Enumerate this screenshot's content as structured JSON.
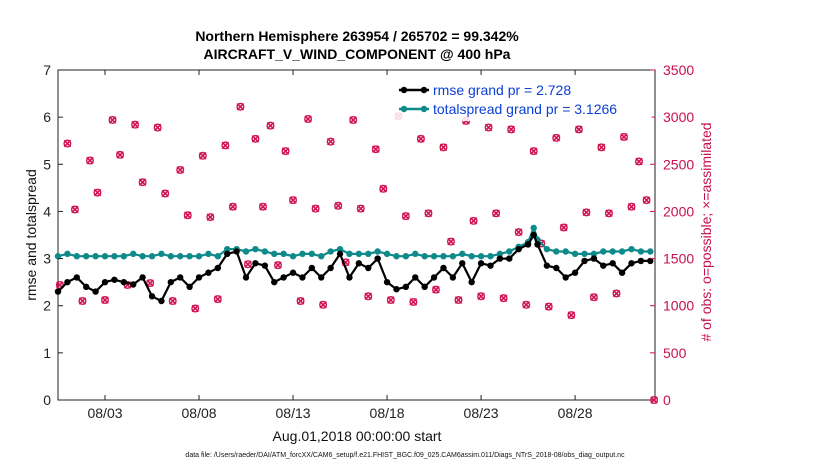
{
  "chart_data": {
    "type": "line",
    "title_line1": "Northern Hemisphere 263954 / 265702 = 99.342%",
    "title_line2": "AIRCRAFT_V_WIND_COMPONENT @ 400 hPa",
    "xlabel": "Aug.01,2018 00:00:00 start",
    "ylabel_left": "rmse and totalspread",
    "ylabel_right": "# of obs: o=possible; ×=assimilated",
    "footer": "data file: /Users/raeder/DAI/ATM_forcXX/CAM6_setup/f.e21.FHIST_BGC.f09_025.CAM6assim.011/Diags_NTrS_2018-08/obs_diag_output.nc",
    "xlim": [
      0.5,
      32.25
    ],
    "ylim_left": [
      0,
      7
    ],
    "ylim_right": [
      0,
      3500
    ],
    "x_ticks": [
      {
        "value": 3,
        "label": "08/03"
      },
      {
        "value": 8,
        "label": "08/08"
      },
      {
        "value": 13,
        "label": "08/13"
      },
      {
        "value": 18,
        "label": "08/18"
      },
      {
        "value": 23,
        "label": "08/23"
      },
      {
        "value": 28,
        "label": "08/28"
      }
    ],
    "y_ticks_left": [
      "0",
      "1",
      "2",
      "3",
      "4",
      "5",
      "6",
      "7"
    ],
    "y_ticks_right": [
      "0",
      "500",
      "1000",
      "1500",
      "2000",
      "2500",
      "3000",
      "3500"
    ],
    "legend": [
      {
        "label": "rmse grand pr = 2.728",
        "color": "#000000"
      },
      {
        "label": "totalspread grand pr = 3.1266",
        "color": "#0e8a8a"
      }
    ],
    "series_rmse": {
      "name": "rmse",
      "color": "#000000",
      "points": [
        [
          0.5,
          2.3
        ],
        [
          1.0,
          2.5
        ],
        [
          1.5,
          2.6
        ],
        [
          2.0,
          2.4
        ],
        [
          2.5,
          2.3
        ],
        [
          3.0,
          2.5
        ],
        [
          3.5,
          2.55
        ],
        [
          4.0,
          2.5
        ],
        [
          4.5,
          2.45
        ],
        [
          5.0,
          2.6
        ],
        [
          5.5,
          2.2
        ],
        [
          6.0,
          2.1
        ],
        [
          6.5,
          2.5
        ],
        [
          7.0,
          2.6
        ],
        [
          7.5,
          2.4
        ],
        [
          8.0,
          2.6
        ],
        [
          8.5,
          2.7
        ],
        [
          9.0,
          2.8
        ],
        [
          9.5,
          3.1
        ],
        [
          10.0,
          3.15
        ],
        [
          10.5,
          2.6
        ],
        [
          11.0,
          2.9
        ],
        [
          11.5,
          2.85
        ],
        [
          12.0,
          2.5
        ],
        [
          12.5,
          2.6
        ],
        [
          13.0,
          2.7
        ],
        [
          13.5,
          2.6
        ],
        [
          14.0,
          2.8
        ],
        [
          14.5,
          2.6
        ],
        [
          15.0,
          2.8
        ],
        [
          15.5,
          3.1
        ],
        [
          16.0,
          2.6
        ],
        [
          16.5,
          2.9
        ],
        [
          17.0,
          2.8
        ],
        [
          17.5,
          3.0
        ],
        [
          18.0,
          2.5
        ],
        [
          18.5,
          2.35
        ],
        [
          19.0,
          2.4
        ],
        [
          19.5,
          2.6
        ],
        [
          20.0,
          2.4
        ],
        [
          20.5,
          2.6
        ],
        [
          21.0,
          2.8
        ],
        [
          21.5,
          2.6
        ],
        [
          22.0,
          2.9
        ],
        [
          22.5,
          2.5
        ],
        [
          23.0,
          2.9
        ],
        [
          23.5,
          2.85
        ],
        [
          24.0,
          3.0
        ],
        [
          24.5,
          3.0
        ],
        [
          25.0,
          3.2
        ],
        [
          25.5,
          3.3
        ],
        [
          25.8,
          3.5
        ],
        [
          26.0,
          3.3
        ],
        [
          26.5,
          2.85
        ],
        [
          27.0,
          2.8
        ],
        [
          27.5,
          2.6
        ],
        [
          28.0,
          2.7
        ],
        [
          28.5,
          2.95
        ],
        [
          29.0,
          3.0
        ],
        [
          29.5,
          2.85
        ],
        [
          30.0,
          2.9
        ],
        [
          30.5,
          2.7
        ],
        [
          31.0,
          2.9
        ],
        [
          31.5,
          2.95
        ],
        [
          32.0,
          2.95
        ]
      ]
    },
    "series_spread": {
      "name": "totalspread",
      "color": "#0e8a8a",
      "points": [
        [
          0.5,
          3.05
        ],
        [
          1.0,
          3.1
        ],
        [
          1.5,
          3.05
        ],
        [
          2.0,
          3.05
        ],
        [
          2.5,
          3.05
        ],
        [
          3.0,
          3.05
        ],
        [
          3.5,
          3.05
        ],
        [
          4.0,
          3.05
        ],
        [
          4.5,
          3.1
        ],
        [
          5.0,
          3.05
        ],
        [
          5.5,
          3.05
        ],
        [
          6.0,
          3.1
        ],
        [
          6.5,
          3.05
        ],
        [
          7.0,
          3.05
        ],
        [
          7.5,
          3.05
        ],
        [
          8.0,
          3.05
        ],
        [
          8.5,
          3.1
        ],
        [
          9.0,
          3.05
        ],
        [
          9.5,
          3.2
        ],
        [
          10.0,
          3.2
        ],
        [
          10.5,
          3.15
        ],
        [
          11.0,
          3.2
        ],
        [
          11.5,
          3.15
        ],
        [
          12.0,
          3.1
        ],
        [
          12.5,
          3.1
        ],
        [
          13.0,
          3.05
        ],
        [
          13.5,
          3.1
        ],
        [
          14.0,
          3.1
        ],
        [
          14.5,
          3.05
        ],
        [
          15.0,
          3.15
        ],
        [
          15.5,
          3.2
        ],
        [
          16.0,
          3.1
        ],
        [
          16.5,
          3.1
        ],
        [
          17.0,
          3.1
        ],
        [
          17.5,
          3.15
        ],
        [
          18.0,
          3.1
        ],
        [
          18.5,
          3.05
        ],
        [
          19.0,
          3.05
        ],
        [
          19.5,
          3.1
        ],
        [
          20.0,
          3.05
        ],
        [
          20.5,
          3.05
        ],
        [
          21.0,
          3.05
        ],
        [
          21.5,
          3.05
        ],
        [
          22.0,
          3.1
        ],
        [
          22.5,
          3.05
        ],
        [
          23.0,
          3.05
        ],
        [
          23.5,
          3.05
        ],
        [
          24.0,
          3.1
        ],
        [
          24.5,
          3.15
        ],
        [
          25.0,
          3.25
        ],
        [
          25.5,
          3.35
        ],
        [
          25.8,
          3.65
        ],
        [
          26.0,
          3.4
        ],
        [
          26.5,
          3.2
        ],
        [
          27.0,
          3.15
        ],
        [
          27.5,
          3.15
        ],
        [
          28.0,
          3.1
        ],
        [
          28.5,
          3.1
        ],
        [
          29.0,
          3.1
        ],
        [
          29.5,
          3.15
        ],
        [
          30.0,
          3.15
        ],
        [
          30.5,
          3.15
        ],
        [
          31.0,
          3.2
        ],
        [
          31.5,
          3.15
        ],
        [
          32.0,
          3.15
        ]
      ]
    },
    "obs_counts": {
      "color": "#d11450",
      "points": [
        [
          0.6,
          1220
        ],
        [
          1.0,
          2720
        ],
        [
          1.4,
          2020
        ],
        [
          1.8,
          1050
        ],
        [
          2.2,
          2540
        ],
        [
          2.6,
          2200
        ],
        [
          3.0,
          1060
        ],
        [
          3.4,
          2970
        ],
        [
          3.8,
          2600
        ],
        [
          4.2,
          1220
        ],
        [
          4.6,
          2920
        ],
        [
          5.0,
          2310
        ],
        [
          5.4,
          1240
        ],
        [
          5.8,
          2890
        ],
        [
          6.2,
          2190
        ],
        [
          6.6,
          1050
        ],
        [
          7.0,
          2440
        ],
        [
          7.4,
          1960
        ],
        [
          7.8,
          970
        ],
        [
          8.2,
          2590
        ],
        [
          8.6,
          1940
        ],
        [
          9.0,
          1070
        ],
        [
          9.4,
          2700
        ],
        [
          9.8,
          2050
        ],
        [
          10.2,
          3110
        ],
        [
          10.6,
          1440
        ],
        [
          11.0,
          2770
        ],
        [
          11.4,
          2050
        ],
        [
          11.8,
          2910
        ],
        [
          12.2,
          1430
        ],
        [
          12.6,
          2640
        ],
        [
          13.0,
          2120
        ],
        [
          13.4,
          1050
        ],
        [
          13.8,
          2980
        ],
        [
          14.2,
          2030
        ],
        [
          14.6,
          1010
        ],
        [
          15.0,
          2740
        ],
        [
          15.4,
          2060
        ],
        [
          15.8,
          1460
        ],
        [
          16.2,
          2970
        ],
        [
          16.6,
          2030
        ],
        [
          17.0,
          1100
        ],
        [
          17.4,
          2660
        ],
        [
          17.8,
          2240
        ],
        [
          18.2,
          1060
        ],
        [
          18.6,
          3010
        ],
        [
          19.0,
          1950
        ],
        [
          19.4,
          1040
        ],
        [
          19.8,
          2770
        ],
        [
          20.2,
          1980
        ],
        [
          20.6,
          1170
        ],
        [
          21.0,
          2680
        ],
        [
          21.4,
          1680
        ],
        [
          21.8,
          1060
        ],
        [
          22.2,
          2960
        ],
        [
          22.6,
          1900
        ],
        [
          23.0,
          1100
        ],
        [
          23.4,
          2890
        ],
        [
          23.8,
          1980
        ],
        [
          24.2,
          1080
        ],
        [
          24.6,
          2870
        ],
        [
          25.0,
          1780
        ],
        [
          25.4,
          1010
        ],
        [
          25.8,
          2640
        ],
        [
          26.2,
          1660
        ],
        [
          26.6,
          990
        ],
        [
          27.0,
          2780
        ],
        [
          27.4,
          1830
        ],
        [
          27.8,
          900
        ],
        [
          28.2,
          2870
        ],
        [
          28.6,
          1990
        ],
        [
          29.0,
          1090
        ],
        [
          29.4,
          2680
        ],
        [
          29.8,
          1980
        ],
        [
          30.2,
          1130
        ],
        [
          30.6,
          2790
        ],
        [
          31.0,
          2050
        ],
        [
          31.4,
          2530
        ],
        [
          31.8,
          2120
        ],
        [
          32.2,
          0
        ]
      ]
    }
  }
}
